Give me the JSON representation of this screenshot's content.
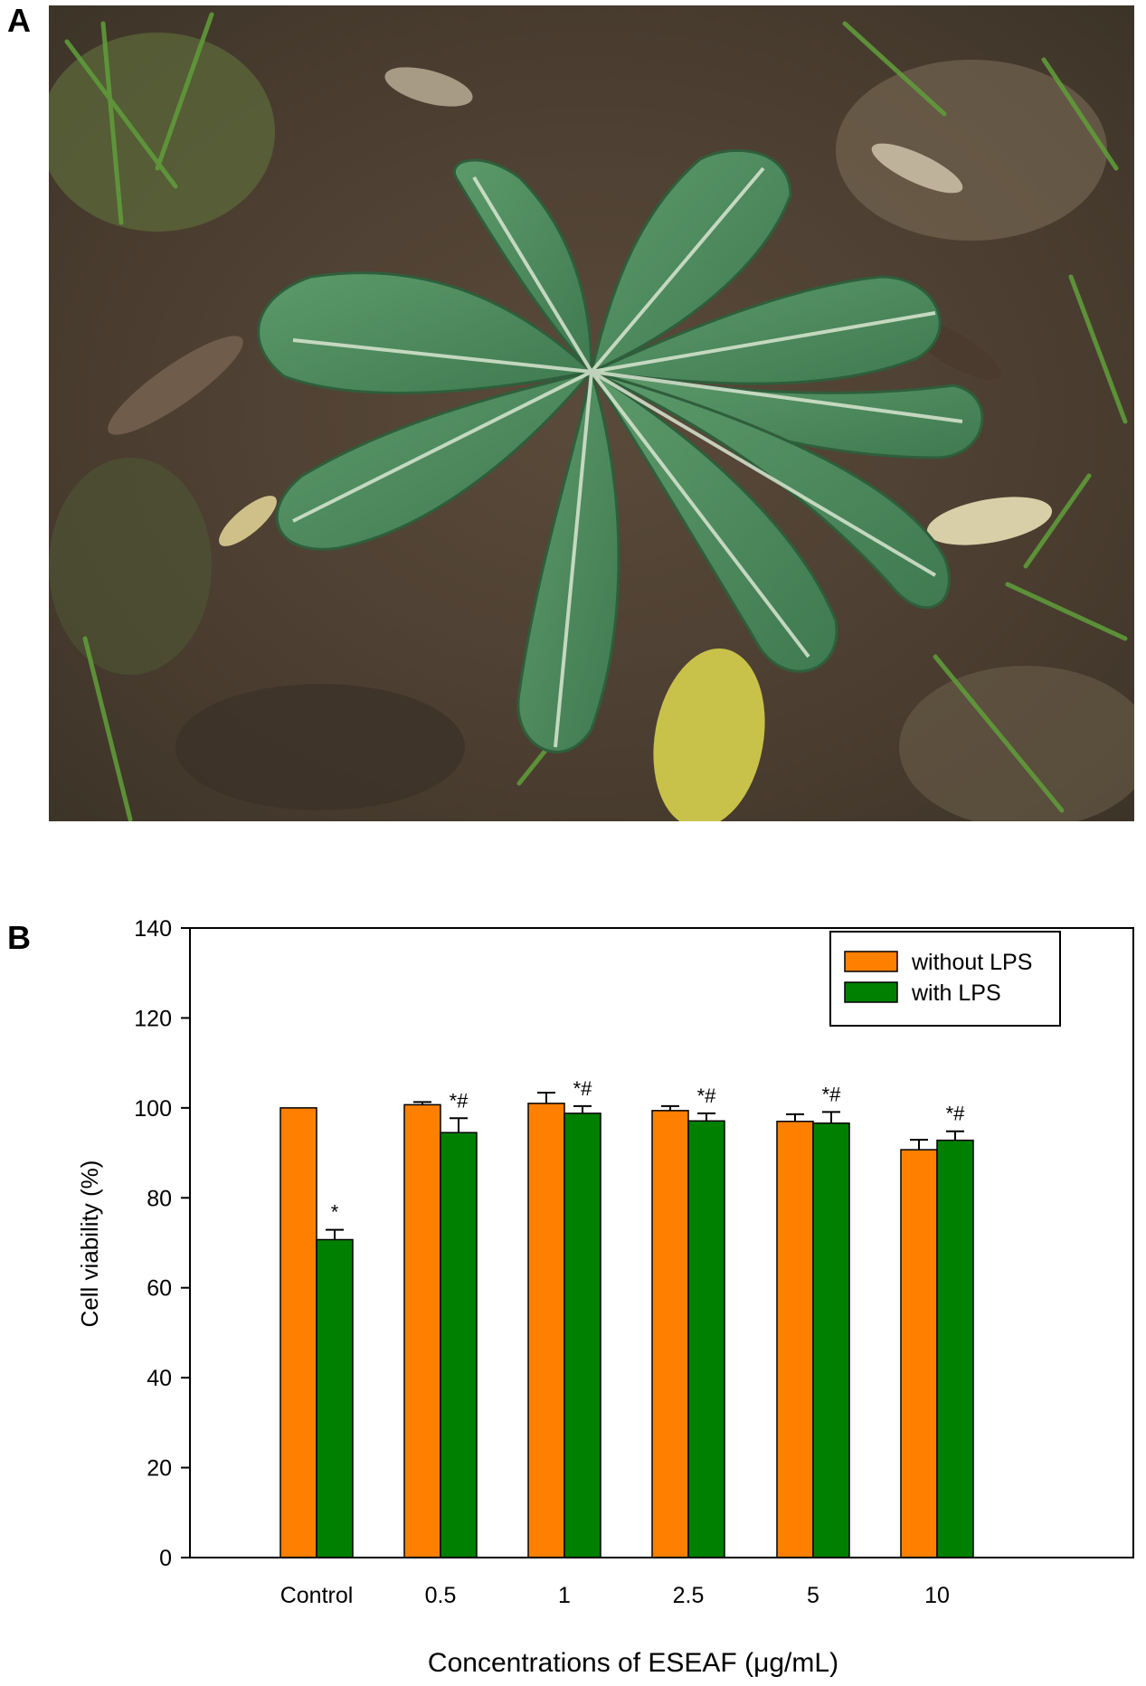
{
  "panels": {
    "a_label": "A",
    "b_label": "B"
  },
  "photo": {
    "subject": "plant-rosette-photo"
  },
  "colors": {
    "without_lps": "#ff8000",
    "with_lps": "#008000",
    "axis": "#000000"
  },
  "chart_data": {
    "type": "bar",
    "title": "",
    "xlabel": "Concentrations of  ESEAF (μg/mL)",
    "ylabel": "Cell viability (%)",
    "ylim": [
      0,
      140
    ],
    "yticks": [
      "0",
      "20",
      "40",
      "60",
      "80",
      "100",
      "120",
      "140"
    ],
    "categories": [
      "Control",
      "0.5",
      "1",
      "2.5",
      "5",
      "10"
    ],
    "series": [
      {
        "name": "without LPS",
        "color": "#ff8000",
        "values": [
          100,
          100.7,
          101,
          99.4,
          97,
          90.7
        ],
        "errors": [
          0,
          0.6,
          2.4,
          1.0,
          1.6,
          2.2
        ],
        "annotations": [
          "",
          "",
          "",
          "",
          "",
          ""
        ]
      },
      {
        "name": "with LPS",
        "color": "#008000",
        "values": [
          70.7,
          94.5,
          98.8,
          97.1,
          96.6,
          92.8
        ],
        "errors": [
          2.2,
          3.2,
          1.6,
          1.7,
          2.5,
          2.0
        ],
        "annotations": [
          "*",
          "*#",
          "*#",
          "*#",
          "*#",
          "*#"
        ]
      }
    ],
    "legend": {
      "position": "top-right"
    }
  }
}
